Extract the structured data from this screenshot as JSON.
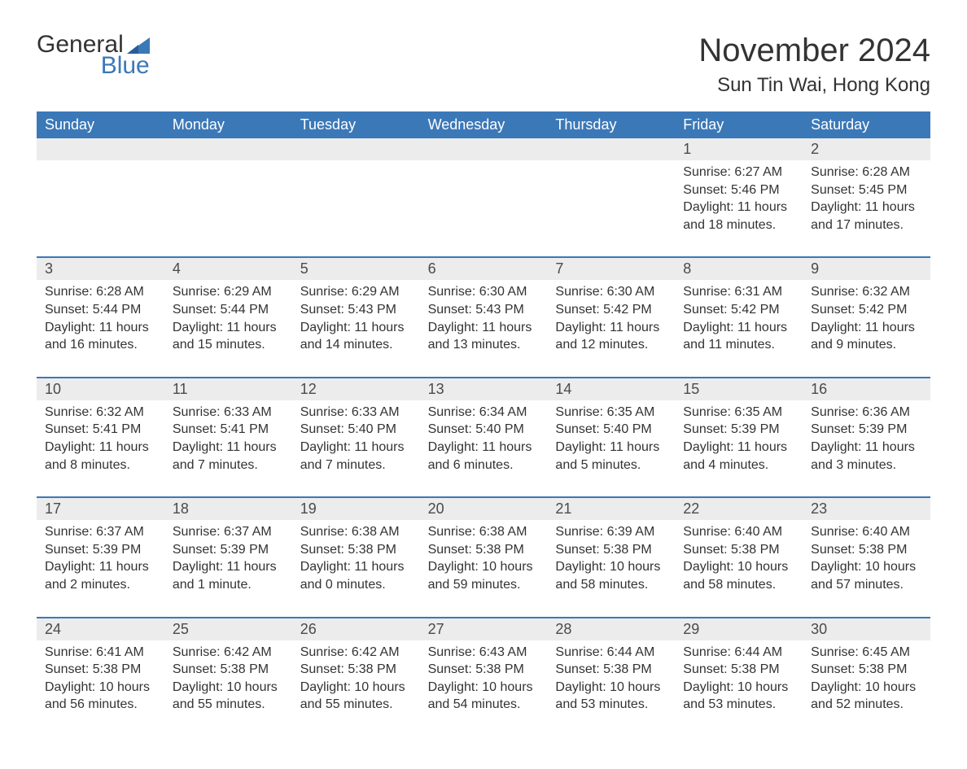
{
  "logo": {
    "word1": "General",
    "word2": "Blue",
    "flag_color": "#3b78b8"
  },
  "title": "November 2024",
  "location": "Sun Tin Wai, Hong Kong",
  "colors": {
    "header_bg": "#3b78b8",
    "header_text": "#ffffff",
    "band_bg": "#ececec",
    "rule": "#3b78b8",
    "body_text": "#333333"
  },
  "day_headers": [
    "Sunday",
    "Monday",
    "Tuesday",
    "Wednesday",
    "Thursday",
    "Friday",
    "Saturday"
  ],
  "weeks": [
    [
      null,
      null,
      null,
      null,
      null,
      {
        "n": "1",
        "sunrise": "6:27 AM",
        "sunset": "5:46 PM",
        "daylight": "11 hours and 18 minutes."
      },
      {
        "n": "2",
        "sunrise": "6:28 AM",
        "sunset": "5:45 PM",
        "daylight": "11 hours and 17 minutes."
      }
    ],
    [
      {
        "n": "3",
        "sunrise": "6:28 AM",
        "sunset": "5:44 PM",
        "daylight": "11 hours and 16 minutes."
      },
      {
        "n": "4",
        "sunrise": "6:29 AM",
        "sunset": "5:44 PM",
        "daylight": "11 hours and 15 minutes."
      },
      {
        "n": "5",
        "sunrise": "6:29 AM",
        "sunset": "5:43 PM",
        "daylight": "11 hours and 14 minutes."
      },
      {
        "n": "6",
        "sunrise": "6:30 AM",
        "sunset": "5:43 PM",
        "daylight": "11 hours and 13 minutes."
      },
      {
        "n": "7",
        "sunrise": "6:30 AM",
        "sunset": "5:42 PM",
        "daylight": "11 hours and 12 minutes."
      },
      {
        "n": "8",
        "sunrise": "6:31 AM",
        "sunset": "5:42 PM",
        "daylight": "11 hours and 11 minutes."
      },
      {
        "n": "9",
        "sunrise": "6:32 AM",
        "sunset": "5:42 PM",
        "daylight": "11 hours and 9 minutes."
      }
    ],
    [
      {
        "n": "10",
        "sunrise": "6:32 AM",
        "sunset": "5:41 PM",
        "daylight": "11 hours and 8 minutes."
      },
      {
        "n": "11",
        "sunrise": "6:33 AM",
        "sunset": "5:41 PM",
        "daylight": "11 hours and 7 minutes."
      },
      {
        "n": "12",
        "sunrise": "6:33 AM",
        "sunset": "5:40 PM",
        "daylight": "11 hours and 7 minutes."
      },
      {
        "n": "13",
        "sunrise": "6:34 AM",
        "sunset": "5:40 PM",
        "daylight": "11 hours and 6 minutes."
      },
      {
        "n": "14",
        "sunrise": "6:35 AM",
        "sunset": "5:40 PM",
        "daylight": "11 hours and 5 minutes."
      },
      {
        "n": "15",
        "sunrise": "6:35 AM",
        "sunset": "5:39 PM",
        "daylight": "11 hours and 4 minutes."
      },
      {
        "n": "16",
        "sunrise": "6:36 AM",
        "sunset": "5:39 PM",
        "daylight": "11 hours and 3 minutes."
      }
    ],
    [
      {
        "n": "17",
        "sunrise": "6:37 AM",
        "sunset": "5:39 PM",
        "daylight": "11 hours and 2 minutes."
      },
      {
        "n": "18",
        "sunrise": "6:37 AM",
        "sunset": "5:39 PM",
        "daylight": "11 hours and 1 minute."
      },
      {
        "n": "19",
        "sunrise": "6:38 AM",
        "sunset": "5:38 PM",
        "daylight": "11 hours and 0 minutes."
      },
      {
        "n": "20",
        "sunrise": "6:38 AM",
        "sunset": "5:38 PM",
        "daylight": "10 hours and 59 minutes."
      },
      {
        "n": "21",
        "sunrise": "6:39 AM",
        "sunset": "5:38 PM",
        "daylight": "10 hours and 58 minutes."
      },
      {
        "n": "22",
        "sunrise": "6:40 AM",
        "sunset": "5:38 PM",
        "daylight": "10 hours and 58 minutes."
      },
      {
        "n": "23",
        "sunrise": "6:40 AM",
        "sunset": "5:38 PM",
        "daylight": "10 hours and 57 minutes."
      }
    ],
    [
      {
        "n": "24",
        "sunrise": "6:41 AM",
        "sunset": "5:38 PM",
        "daylight": "10 hours and 56 minutes."
      },
      {
        "n": "25",
        "sunrise": "6:42 AM",
        "sunset": "5:38 PM",
        "daylight": "10 hours and 55 minutes."
      },
      {
        "n": "26",
        "sunrise": "6:42 AM",
        "sunset": "5:38 PM",
        "daylight": "10 hours and 55 minutes."
      },
      {
        "n": "27",
        "sunrise": "6:43 AM",
        "sunset": "5:38 PM",
        "daylight": "10 hours and 54 minutes."
      },
      {
        "n": "28",
        "sunrise": "6:44 AM",
        "sunset": "5:38 PM",
        "daylight": "10 hours and 53 minutes."
      },
      {
        "n": "29",
        "sunrise": "6:44 AM",
        "sunset": "5:38 PM",
        "daylight": "10 hours and 53 minutes."
      },
      {
        "n": "30",
        "sunrise": "6:45 AM",
        "sunset": "5:38 PM",
        "daylight": "10 hours and 52 minutes."
      }
    ]
  ]
}
